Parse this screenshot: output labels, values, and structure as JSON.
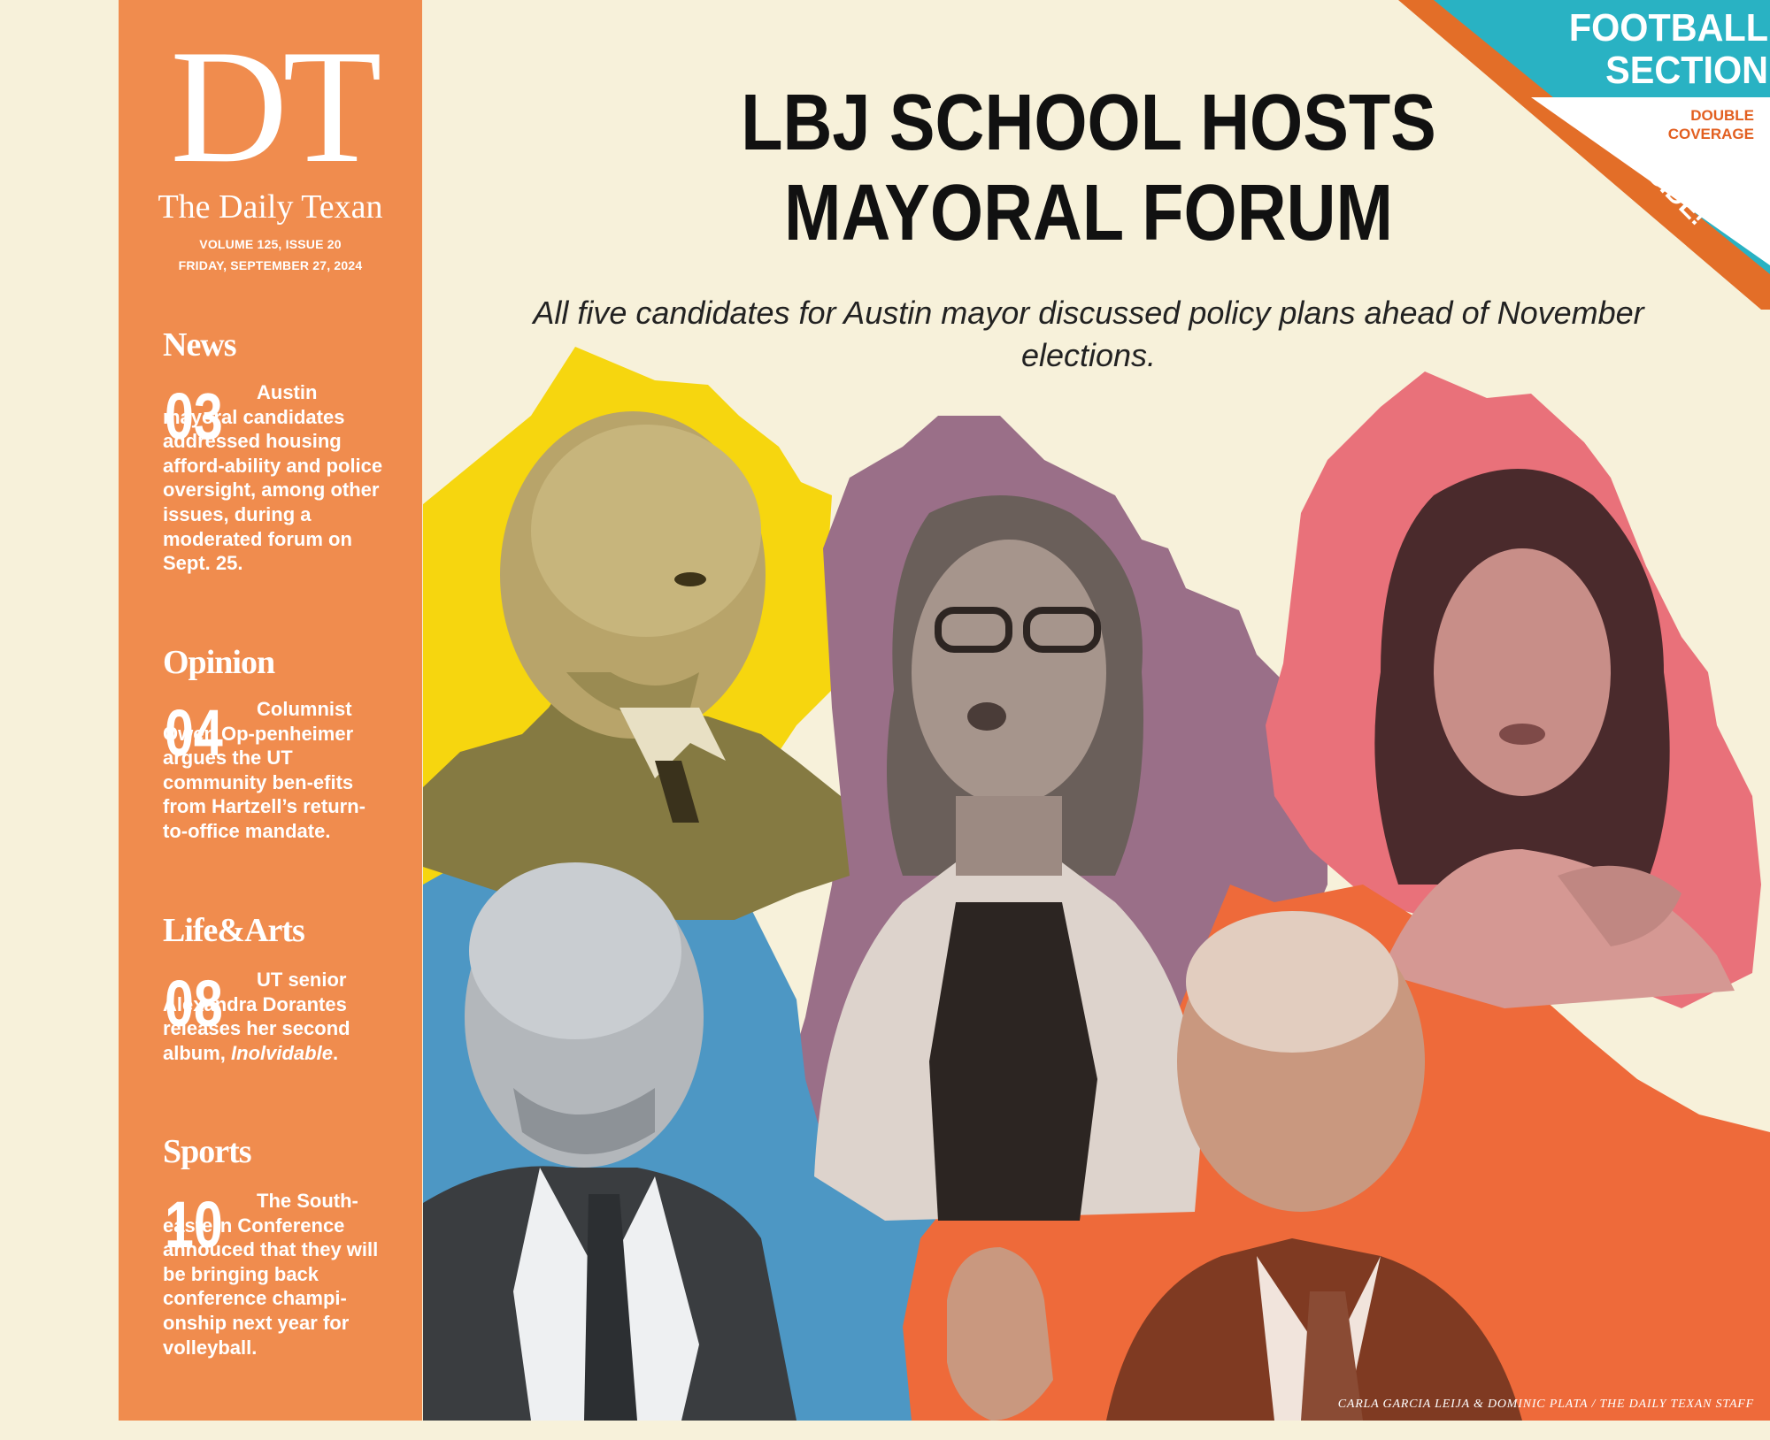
{
  "masthead": {
    "logo": "DT",
    "paper_name": "The Daily Texan",
    "volume": "VOLUME 125, ISSUE 20",
    "date": "FRIDAY, SEPTEMBER 27, 2024"
  },
  "sections": [
    {
      "name": "News",
      "page": "03",
      "text": "Austin mayoral candidates addressed housing afford-ability and police oversight, among other issues, during a moderated forum on Sept. 25."
    },
    {
      "name": "Opinion",
      "page": "04",
      "text": "Columnist Owen Op-penheimer argues the UT community ben-efits from Hartzell’s return-to-office mandate."
    },
    {
      "name": "Life&Arts",
      "page": "08",
      "text_before": "UT senior Alexandra Dorantes releases her second album, ",
      "text_italic": "Inolvidable",
      "text_after": "."
    },
    {
      "name": "Sports",
      "page": "10",
      "text": "The South-eastern Conference annouced that they will be bringing back conference champi-onship next year for volleyball."
    }
  ],
  "headline": {
    "line1": "LBJ SCHOOL HOSTS",
    "line2": "MAYORAL FORUM",
    "subhead": "All five candidates for Austin mayor discussed policy plans ahead of November elections."
  },
  "badge": {
    "title_line1": "FOOTBALL",
    "title_line2": "SECTION",
    "sub_line1": "DOUBLE",
    "sub_line2": "COVERAGE",
    "ribbon": "SEE INSIDE!"
  },
  "photo_credit": "CARLA GARCIA LEIJA & DOMINIC PLATA / THE DAILY TEXAN STAFF",
  "colors": {
    "sidebar": "#f08c4e",
    "background": "#f7f1da",
    "yellow": "#f6d60f",
    "mauve": "#9a6f88",
    "pink": "#e9717a",
    "blue": "#4d97c4",
    "orange": "#ee6a3a",
    "teal": "#29b2c3",
    "ribbon": "#e36e28"
  },
  "icons": [
    "portrait-sepia-man",
    "portrait-woman-glasses",
    "portrait-woman-dark-hair",
    "portrait-man-gray",
    "portrait-man-suit-orange"
  ]
}
